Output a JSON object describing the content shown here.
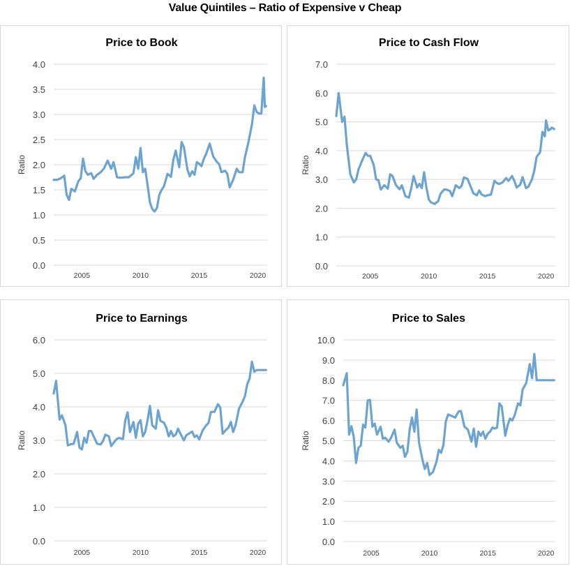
{
  "page_title": "Value Quintiles – Ratio of Expensive v Cheap",
  "line_color": "#6ba3d1",
  "chart_data": [
    {
      "type": "line",
      "title": "Price to Book",
      "xlabel": "",
      "ylabel": "Ratio",
      "ylim": [
        0,
        4.0
      ],
      "yticks": [
        "0.0",
        "0.5",
        "1.0",
        "1.5",
        "2.0",
        "2.5",
        "3.0",
        "3.5",
        "4.0"
      ],
      "ytick_values": [
        0,
        0.5,
        1.0,
        1.5,
        2.0,
        2.5,
        3.0,
        3.5,
        4.0
      ],
      "xlim": [
        2002.6,
        2020.8
      ],
      "xticks": [
        "2005",
        "2010",
        "2015",
        "2020"
      ],
      "xtick_values": [
        2005,
        2010,
        2015,
        2020
      ],
      "grid": true,
      "series": [
        {
          "name": "Price to Book",
          "x": [
            2002.6,
            2002.9,
            2003.2,
            2003.5,
            2003.7,
            2003.9,
            2004.1,
            2004.4,
            2004.7,
            2004.9,
            2005.1,
            2005.3,
            2005.5,
            2005.8,
            2006.0,
            2006.3,
            2006.6,
            2006.9,
            2007.2,
            2007.5,
            2007.7,
            2008.0,
            2008.3,
            2008.7,
            2009.0,
            2009.4,
            2009.6,
            2009.8,
            2010.0,
            2010.2,
            2010.4,
            2010.6,
            2010.8,
            2011.0,
            2011.2,
            2011.4,
            2011.6,
            2011.8,
            2012.0,
            2012.3,
            2012.6,
            2012.8,
            2013.0,
            2013.3,
            2013.5,
            2013.7,
            2014.0,
            2014.2,
            2014.4,
            2014.6,
            2014.8,
            2015.0,
            2015.2,
            2015.4,
            2015.6,
            2015.9,
            2016.2,
            2016.5,
            2016.7,
            2016.9,
            2017.2,
            2017.4,
            2017.6,
            2017.9,
            2018.2,
            2018.4,
            2018.7,
            2018.9,
            2019.2,
            2019.5,
            2019.7,
            2019.9,
            2020.1,
            2020.3,
            2020.5,
            2020.6,
            2020.7
          ],
          "values": [
            1.7,
            1.7,
            1.73,
            1.78,
            1.4,
            1.3,
            1.52,
            1.47,
            1.67,
            1.73,
            2.12,
            1.87,
            1.8,
            1.83,
            1.72,
            1.8,
            1.85,
            1.93,
            2.08,
            1.92,
            2.05,
            1.75,
            1.74,
            1.75,
            1.75,
            1.83,
            2.15,
            1.92,
            2.33,
            1.85,
            1.92,
            1.6,
            1.25,
            1.12,
            1.07,
            1.14,
            1.4,
            1.5,
            1.57,
            1.82,
            1.76,
            2.1,
            2.28,
            1.95,
            2.45,
            2.35,
            1.9,
            1.77,
            1.87,
            1.8,
            2.05,
            2.02,
            1.97,
            2.12,
            2.22,
            2.42,
            2.16,
            2.06,
            2.01,
            1.85,
            1.88,
            1.82,
            1.55,
            1.7,
            1.92,
            1.85,
            1.85,
            2.15,
            2.45,
            2.8,
            3.18,
            3.05,
            3.02,
            3.02,
            3.73,
            3.15,
            3.17
          ]
        }
      ]
    },
    {
      "type": "line",
      "title": "Price to Cash Flow",
      "xlabel": "",
      "ylabel": "Ratio",
      "ylim": [
        0,
        7.0
      ],
      "yticks": [
        "0.0",
        "1.0",
        "2.0",
        "3.0",
        "4.0",
        "5.0",
        "6.0",
        "7.0"
      ],
      "ytick_values": [
        0,
        1,
        2,
        3,
        4,
        5,
        6,
        7
      ],
      "xlim": [
        2002.1,
        2020.8
      ],
      "xticks": [
        "2005",
        "2010",
        "2015",
        "2020"
      ],
      "xtick_values": [
        2005,
        2010,
        2015,
        2020
      ],
      "grid": true,
      "series": [
        {
          "name": "Price to Cash Flow",
          "x": [
            2002.1,
            2002.3,
            2002.6,
            2002.8,
            2003.0,
            2003.3,
            2003.6,
            2003.8,
            2004.0,
            2004.3,
            2004.6,
            2004.8,
            2005.0,
            2005.3,
            2005.5,
            2005.7,
            2005.9,
            2006.2,
            2006.5,
            2006.7,
            2006.9,
            2007.2,
            2007.5,
            2007.7,
            2008.0,
            2008.3,
            2008.5,
            2008.7,
            2009.0,
            2009.2,
            2009.4,
            2009.6,
            2009.8,
            2010.0,
            2010.2,
            2010.5,
            2010.8,
            2011.0,
            2011.3,
            2011.5,
            2011.8,
            2012.0,
            2012.3,
            2012.6,
            2012.8,
            2013.0,
            2013.3,
            2013.6,
            2013.8,
            2014.1,
            2014.3,
            2014.5,
            2014.8,
            2015.0,
            2015.3,
            2015.6,
            2015.8,
            2016.0,
            2016.3,
            2016.6,
            2016.8,
            2017.1,
            2017.3,
            2017.5,
            2017.8,
            2018.0,
            2018.3,
            2018.5,
            2018.8,
            2019.0,
            2019.2,
            2019.5,
            2019.7,
            2019.9,
            2020.0,
            2020.2,
            2020.4,
            2020.5,
            2020.7
          ],
          "values": [
            5.2,
            6.0,
            5.0,
            5.18,
            4.2,
            3.18,
            2.9,
            3.0,
            3.35,
            3.65,
            3.92,
            3.82,
            3.82,
            3.5,
            3.0,
            2.98,
            2.65,
            2.8,
            2.68,
            3.18,
            3.12,
            2.8,
            2.66,
            2.8,
            2.42,
            2.37,
            2.7,
            3.12,
            2.72,
            2.85,
            2.7,
            3.25,
            2.7,
            2.3,
            2.2,
            2.15,
            2.25,
            2.5,
            2.65,
            2.65,
            2.6,
            2.42,
            2.8,
            2.7,
            2.78,
            3.07,
            3.02,
            2.72,
            2.52,
            2.45,
            2.62,
            2.48,
            2.42,
            2.45,
            2.47,
            2.95,
            2.88,
            2.84,
            2.9,
            3.05,
            2.95,
            3.12,
            2.95,
            2.72,
            2.82,
            3.08,
            2.7,
            2.75,
            3.0,
            3.3,
            3.78,
            3.95,
            4.65,
            4.5,
            5.05,
            4.7,
            4.75,
            4.8,
            4.75
          ]
        }
      ]
    },
    {
      "type": "line",
      "title": "Price to Earnings",
      "xlabel": "",
      "ylabel": "Ratio",
      "ylim": [
        0,
        6.0
      ],
      "yticks": [
        "0.0",
        "1.0",
        "2.0",
        "3.0",
        "4.0",
        "5.0",
        "6.0"
      ],
      "ytick_values": [
        0,
        1,
        2,
        3,
        4,
        5,
        6
      ],
      "xlim": [
        2002.6,
        2020.8
      ],
      "xticks": [
        "2005",
        "2010",
        "2015",
        "2020"
      ],
      "xtick_values": [
        2005,
        2010,
        2015,
        2020
      ],
      "grid": true,
      "series": [
        {
          "name": "Price to Earnings",
          "x": [
            2002.6,
            2002.8,
            2003.1,
            2003.3,
            2003.6,
            2003.8,
            2004.0,
            2004.3,
            2004.6,
            2004.8,
            2005.0,
            2005.2,
            2005.4,
            2005.6,
            2005.8,
            2006.0,
            2006.3,
            2006.6,
            2006.8,
            2007.0,
            2007.3,
            2007.5,
            2007.8,
            2008.0,
            2008.2,
            2008.5,
            2008.7,
            2008.9,
            2009.1,
            2009.4,
            2009.6,
            2009.8,
            2010.0,
            2010.2,
            2010.4,
            2010.6,
            2010.8,
            2011.0,
            2011.3,
            2011.5,
            2011.7,
            2012.0,
            2012.2,
            2012.4,
            2012.6,
            2012.8,
            2013.0,
            2013.2,
            2013.4,
            2013.7,
            2013.9,
            2014.2,
            2014.4,
            2014.6,
            2014.8,
            2015.0,
            2015.3,
            2015.6,
            2015.8,
            2016.0,
            2016.3,
            2016.6,
            2016.8,
            2017.0,
            2017.3,
            2017.5,
            2017.7,
            2017.9,
            2018.1,
            2018.4,
            2018.7,
            2018.9,
            2019.1,
            2019.3,
            2019.5,
            2019.7,
            2019.9,
            2020.1,
            2020.3,
            2020.5,
            2020.6,
            2020.7
          ],
          "values": [
            4.4,
            4.78,
            3.62,
            3.75,
            3.45,
            2.85,
            2.88,
            2.9,
            3.25,
            2.78,
            2.73,
            3.08,
            2.93,
            3.28,
            3.28,
            3.12,
            2.9,
            2.88,
            2.98,
            3.17,
            3.12,
            2.83,
            2.97,
            3.05,
            3.07,
            3.04,
            3.6,
            3.84,
            3.25,
            3.55,
            3.08,
            3.5,
            3.6,
            3.12,
            3.25,
            3.6,
            4.03,
            3.45,
            3.35,
            3.9,
            3.58,
            3.53,
            3.38,
            3.12,
            3.28,
            3.12,
            3.17,
            3.35,
            3.2,
            3.0,
            3.15,
            3.22,
            3.26,
            3.1,
            3.15,
            3.03,
            3.3,
            3.45,
            3.52,
            3.85,
            3.85,
            4.08,
            3.98,
            3.2,
            3.32,
            3.38,
            3.55,
            3.25,
            3.45,
            3.95,
            4.15,
            4.32,
            4.68,
            4.85,
            5.35,
            5.05,
            5.1,
            5.1,
            5.1,
            5.1,
            5.1,
            5.1
          ]
        }
      ]
    },
    {
      "type": "line",
      "title": "Price to Sales",
      "xlabel": "",
      "ylabel": "Ratio",
      "ylim": [
        0,
        10.0
      ],
      "yticks": [
        "0.0",
        "1.0",
        "2.0",
        "3.0",
        "4.0",
        "5.0",
        "6.0",
        "7.0",
        "8.0",
        "9.0",
        "10.0"
      ],
      "ytick_values": [
        0,
        1,
        2,
        3,
        4,
        5,
        6,
        7,
        8,
        9,
        10
      ],
      "xlim": [
        2002.6,
        2020.8
      ],
      "xticks": [
        "2005",
        "2010",
        "2015",
        "2020"
      ],
      "xtick_values": [
        2005,
        2010,
        2015,
        2020
      ],
      "grid": true,
      "series": [
        {
          "name": "Price to Sales",
          "x": [
            2002.6,
            2002.9,
            2003.1,
            2003.3,
            2003.5,
            2003.7,
            2003.9,
            2004.1,
            2004.3,
            2004.5,
            2004.7,
            2004.9,
            2005.1,
            2005.3,
            2005.5,
            2005.8,
            2006.0,
            2006.2,
            2006.5,
            2006.7,
            2007.0,
            2007.2,
            2007.5,
            2007.7,
            2007.9,
            2008.1,
            2008.3,
            2008.5,
            2008.7,
            2008.9,
            2009.1,
            2009.4,
            2009.6,
            2009.8,
            2010.0,
            2010.3,
            2010.6,
            2010.8,
            2011.0,
            2011.2,
            2011.4,
            2011.6,
            2011.8,
            2012.0,
            2012.2,
            2012.5,
            2012.7,
            2013.0,
            2013.3,
            2013.6,
            2013.8,
            2014.0,
            2014.2,
            2014.4,
            2014.6,
            2014.8,
            2015.0,
            2015.2,
            2015.4,
            2015.6,
            2015.8,
            2016.0,
            2016.2,
            2016.5,
            2016.7,
            2016.9,
            2017.1,
            2017.3,
            2017.6,
            2017.8,
            2018.0,
            2018.3,
            2018.6,
            2018.8,
            2019.0,
            2019.2,
            2019.4,
            2019.6,
            2019.8,
            2020.0,
            2020.2,
            2020.4,
            2020.6,
            2020.7
          ],
          "values": [
            7.75,
            8.35,
            5.3,
            5.72,
            5.2,
            3.9,
            4.65,
            4.75,
            5.8,
            5.65,
            7.0,
            7.02,
            5.7,
            5.85,
            5.3,
            5.7,
            5.1,
            5.15,
            4.95,
            5.15,
            5.55,
            4.9,
            4.65,
            4.75,
            4.2,
            4.45,
            5.55,
            6.15,
            5.45,
            6.55,
            4.9,
            4.05,
            3.6,
            3.9,
            3.3,
            3.45,
            3.95,
            4.55,
            4.4,
            4.8,
            5.95,
            6.3,
            6.25,
            6.2,
            6.15,
            6.45,
            6.47,
            5.7,
            5.55,
            4.95,
            5.6,
            4.7,
            5.45,
            5.25,
            5.45,
            5.1,
            5.35,
            5.45,
            5.65,
            5.6,
            5.65,
            6.85,
            6.7,
            5.25,
            5.75,
            6.1,
            6.0,
            6.25,
            6.85,
            6.75,
            7.55,
            7.85,
            8.8,
            8.1,
            9.3,
            8.0,
            8.0,
            8.0,
            8.0,
            8.0,
            8.0,
            8.0,
            8.0,
            8.0
          ]
        }
      ]
    }
  ]
}
